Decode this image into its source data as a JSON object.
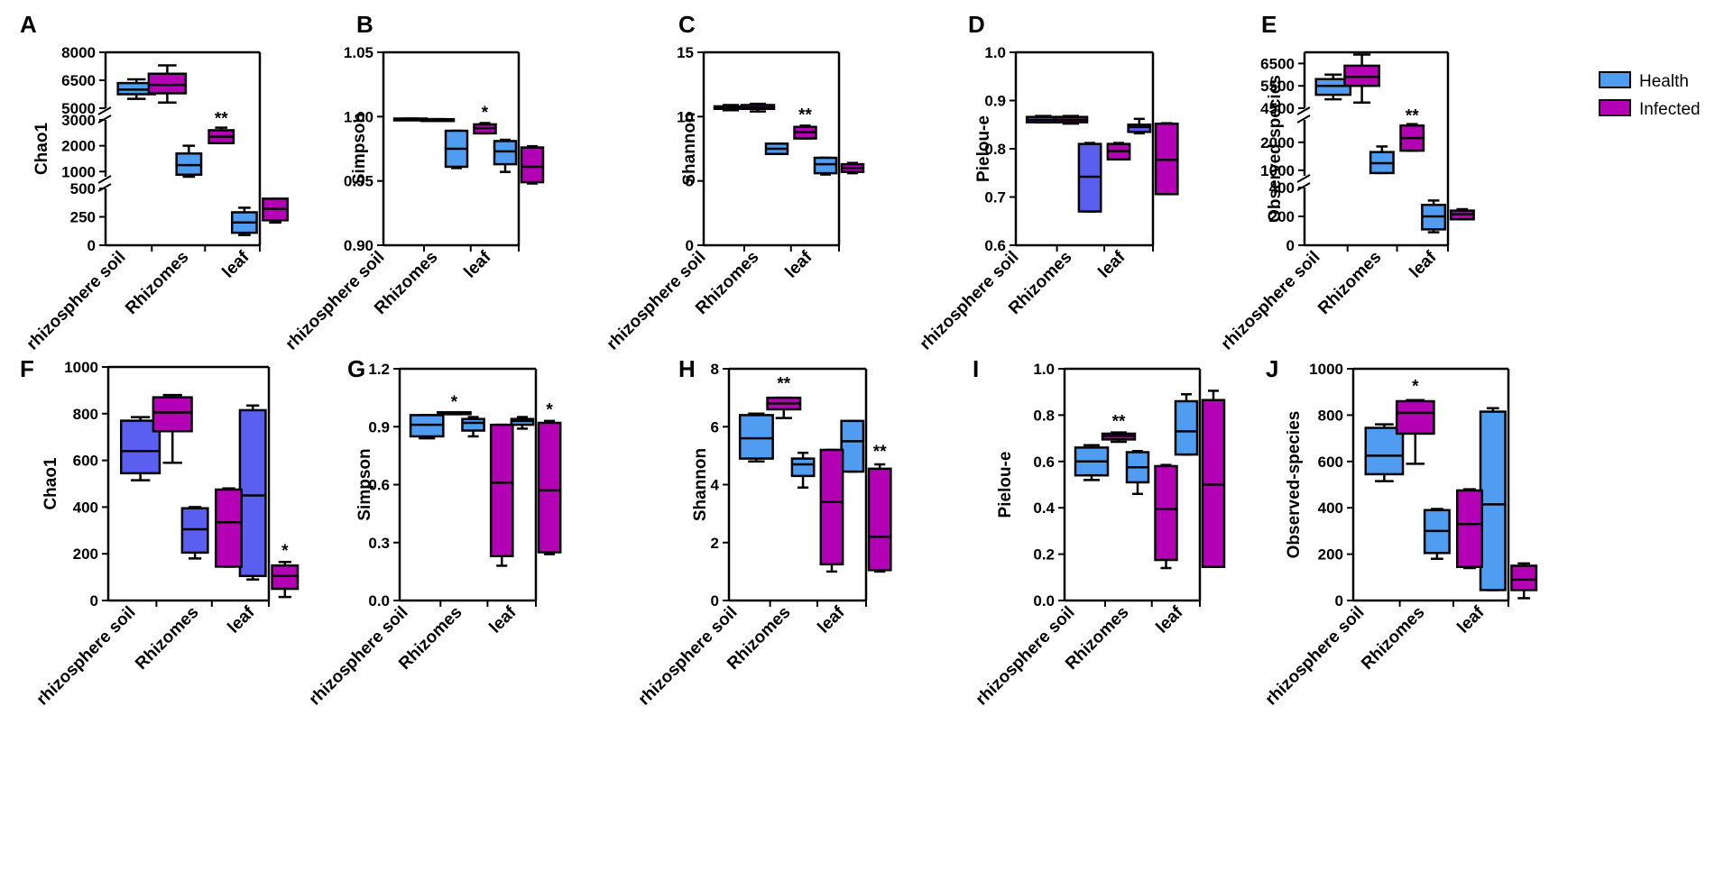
{
  "legend": {
    "items": [
      {
        "name": "Health",
        "color": "#4f9cf0"
      },
      {
        "name": "Infected",
        "color": "#b400b4"
      }
    ]
  },
  "colors": {
    "health": "#4f9cf0",
    "health_alt": "#5a5ff0",
    "infected": "#b400b4",
    "axis": "#000000"
  },
  "chart_data": [
    {
      "panel": "A",
      "type": "box",
      "ylabel": "Chao1",
      "categories": [
        "rhizosphere soil",
        "Rhizomes",
        "leaf"
      ],
      "segments": [
        {
          "range": [
            0,
            500
          ],
          "ticks": [
            "0",
            "250",
            "500"
          ]
        },
        {
          "range": [
            800,
            3000
          ],
          "ticks": [
            "1000",
            "2000",
            "3000"
          ]
        },
        {
          "range": [
            5000,
            8000
          ],
          "ticks": [
            "5000",
            "6500",
            "8000"
          ]
        }
      ],
      "series": [
        {
          "name": "Health",
          "boxes": [
            {
              "min": 5500,
              "q1": 5750,
              "median": 6000,
              "q3": 6350,
              "max": 6550
            },
            {
              "min": 800,
              "q1": 880,
              "median": 1250,
              "q3": 1700,
              "max": 2000
            },
            {
              "min": 90,
              "q1": 110,
              "median": 200,
              "q3": 290,
              "max": 330
            }
          ]
        },
        {
          "name": "Infected",
          "boxes": [
            {
              "min": 5300,
              "q1": 5800,
              "median": 6250,
              "q3": 6850,
              "max": 7300
            },
            {
              "min": 2100,
              "q1": 2100,
              "median": 2350,
              "q3": 2600,
              "max": 2700
            },
            {
              "min": 200,
              "q1": 220,
              "median": 320,
              "q3": 410,
              "max": 410
            }
          ]
        }
      ],
      "significance": [
        {
          "category": "Rhizomes",
          "label": "**",
          "value": 2850
        }
      ]
    },
    {
      "panel": "B",
      "type": "box",
      "ylabel": "Simpson",
      "categories": [
        "rhizosphere soil",
        "Rhizomes",
        "leaf"
      ],
      "segments": [
        {
          "range": [
            0.9,
            1.05
          ],
          "ticks": [
            "0.90",
            "0.95",
            "1.00",
            "1.05"
          ]
        }
      ],
      "series": [
        {
          "name": "Health",
          "boxes": [
            {
              "min": 0.9975,
              "q1": 0.9975,
              "median": 0.998,
              "q3": 0.9985,
              "max": 0.9985
            },
            {
              "min": 0.96,
              "q1": 0.961,
              "median": 0.975,
              "q3": 0.989,
              "max": 0.989
            },
            {
              "min": 0.957,
              "q1": 0.963,
              "median": 0.973,
              "q3": 0.981,
              "max": 0.982
            }
          ]
        },
        {
          "name": "Infected",
          "boxes": [
            {
              "min": 0.997,
              "q1": 0.997,
              "median": 0.9975,
              "q3": 0.998,
              "max": 0.998
            },
            {
              "min": 0.987,
              "q1": 0.987,
              "median": 0.991,
              "q3": 0.994,
              "max": 0.995
            },
            {
              "min": 0.948,
              "q1": 0.949,
              "median": 0.961,
              "q3": 0.976,
              "max": 0.977
            }
          ]
        }
      ],
      "significance": [
        {
          "category": "Rhizomes",
          "label": "*",
          "value": 0.999
        }
      ]
    },
    {
      "panel": "C",
      "type": "box",
      "ylabel": "Shannon",
      "categories": [
        "rhizosphere soil",
        "Rhizomes",
        "leaf"
      ],
      "segments": [
        {
          "range": [
            0,
            15
          ],
          "ticks": [
            "0",
            "5",
            "10",
            "15"
          ]
        }
      ],
      "series": [
        {
          "name": "Health",
          "boxes": [
            {
              "min": 10.5,
              "q1": 10.6,
              "median": 10.7,
              "q3": 10.8,
              "max": 10.9
            },
            {
              "min": 7.1,
              "q1": 7.1,
              "median": 7.5,
              "q3": 7.9,
              "max": 7.9
            },
            {
              "min": 5.5,
              "q1": 5.6,
              "median": 6.3,
              "q3": 6.8,
              "max": 6.8
            }
          ]
        },
        {
          "name": "Infected",
          "boxes": [
            {
              "min": 10.4,
              "q1": 10.6,
              "median": 10.7,
              "q3": 10.9,
              "max": 11.0
            },
            {
              "min": 8.3,
              "q1": 8.3,
              "median": 8.8,
              "q3": 9.2,
              "max": 9.3
            },
            {
              "min": 5.6,
              "q1": 5.7,
              "median": 6.0,
              "q3": 6.3,
              "max": 6.4
            }
          ]
        }
      ],
      "significance": [
        {
          "category": "Rhizomes",
          "label": "**",
          "value": 9.7
        }
      ]
    },
    {
      "panel": "D",
      "type": "box",
      "ylabel": "Pielou-e",
      "categories": [
        "rhizosphere soil",
        "Rhizomes",
        "leaf"
      ],
      "segments": [
        {
          "range": [
            0.6,
            1.0
          ],
          "ticks": [
            "0.6",
            "0.7",
            "0.8",
            "0.9",
            "1.0"
          ]
        }
      ],
      "series": [
        {
          "name": "Health",
          "boxes": [
            {
              "min": 0.855,
              "q1": 0.855,
              "median": 0.86,
              "q3": 0.866,
              "max": 0.868
            },
            {
              "min": 0.67,
              "q1": 0.67,
              "median": 0.742,
              "q3": 0.81,
              "max": 0.812
            },
            {
              "min": 0.832,
              "q1": 0.835,
              "median": 0.845,
              "q3": 0.85,
              "max": 0.862
            }
          ]
        },
        {
          "name": "Infected",
          "boxes": [
            {
              "min": 0.852,
              "q1": 0.855,
              "median": 0.86,
              "q3": 0.866,
              "max": 0.868
            },
            {
              "min": 0.778,
              "q1": 0.778,
              "median": 0.795,
              "q3": 0.81,
              "max": 0.812
            },
            {
              "min": 0.706,
              "q1": 0.706,
              "median": 0.777,
              "q3": 0.852,
              "max": 0.853
            }
          ]
        }
      ],
      "significance": []
    },
    {
      "panel": "E",
      "type": "box",
      "ylabel": "Observed-species",
      "categories": [
        "rhizosphere soil",
        "Rhizomes",
        "leaf"
      ],
      "segments": [
        {
          "range": [
            0,
            400
          ],
          "ticks": [
            "0",
            "200",
            "400"
          ]
        },
        {
          "range": [
            800,
            2800
          ],
          "ticks": [
            "1000",
            "2000"
          ]
        },
        {
          "range": [
            4500,
            7000
          ],
          "ticks": [
            "4500",
            "5500",
            "6500"
          ]
        }
      ],
      "series": [
        {
          "name": "Health",
          "boxes": [
            {
              "min": 4900,
              "q1": 5100,
              "median": 5500,
              "q3": 5800,
              "max": 6000
            },
            {
              "min": 900,
              "q1": 900,
              "median": 1250,
              "q3": 1650,
              "max": 1850
            },
            {
              "min": 90,
              "q1": 110,
              "median": 200,
              "q3": 280,
              "max": 310
            }
          ]
        },
        {
          "name": "Infected",
          "boxes": [
            {
              "min": 4750,
              "q1": 5500,
              "median": 5900,
              "q3": 6400,
              "max": 6900
            },
            {
              "min": 1700,
              "q1": 1700,
              "median": 2150,
              "q3": 2600,
              "max": 2650
            },
            {
              "min": 180,
              "q1": 180,
              "median": 215,
              "q3": 240,
              "max": 250
            }
          ]
        }
      ],
      "significance": [
        {
          "category": "Rhizomes",
          "label": "**",
          "value": 2750
        }
      ]
    },
    {
      "panel": "F",
      "type": "box",
      "ylabel": "Chao1",
      "categories": [
        "rhizosphere soil",
        "Rhizomes",
        "leaf"
      ],
      "segments": [
        {
          "range": [
            0,
            1000
          ],
          "ticks": [
            "0",
            "200",
            "400",
            "600",
            "800",
            "1000"
          ]
        }
      ],
      "series": [
        {
          "name": "Health",
          "boxes": [
            {
              "min": 515,
              "q1": 545,
              "median": 640,
              "q3": 770,
              "max": 785
            },
            {
              "min": 180,
              "q1": 205,
              "median": 305,
              "q3": 395,
              "max": 400
            },
            {
              "min": 90,
              "q1": 105,
              "median": 450,
              "q3": 815,
              "max": 835
            }
          ]
        },
        {
          "name": "Infected",
          "boxes": [
            {
              "min": 590,
              "q1": 725,
              "median": 805,
              "q3": 870,
              "max": 880
            },
            {
              "min": 145,
              "q1": 145,
              "median": 335,
              "q3": 475,
              "max": 480
            },
            {
              "min": 15,
              "q1": 50,
              "median": 105,
              "q3": 150,
              "max": 165
            }
          ]
        }
      ],
      "significance": [
        {
          "category": "leaf",
          "label": "*",
          "value": 190
        }
      ]
    },
    {
      "panel": "G",
      "type": "box",
      "ylabel": "Simpson",
      "categories": [
        "rhizosphere soil",
        "Rhizomes",
        "leaf"
      ],
      "segments": [
        {
          "range": [
            0,
            1.2
          ],
          "ticks": [
            "0.0",
            "0.3",
            "0.6",
            "0.9",
            "1.2"
          ]
        }
      ],
      "series": [
        {
          "name": "Health",
          "boxes": [
            {
              "min": 0.84,
              "q1": 0.85,
              "median": 0.91,
              "q3": 0.96,
              "max": 0.96
            },
            {
              "min": 0.85,
              "q1": 0.88,
              "median": 0.92,
              "q3": 0.94,
              "max": 0.95
            },
            {
              "min": 0.89,
              "q1": 0.91,
              "median": 0.93,
              "q3": 0.94,
              "max": 0.95
            }
          ]
        },
        {
          "name": "Infected",
          "boxes": [
            {
              "min": 0.965,
              "q1": 0.965,
              "median": 0.97,
              "q3": 0.975,
              "max": 0.975
            },
            {
              "min": 0.18,
              "q1": 0.23,
              "median": 0.61,
              "q3": 0.91,
              "max": 0.91
            },
            {
              "min": 0.24,
              "q1": 0.25,
              "median": 0.57,
              "q3": 0.92,
              "max": 0.93
            }
          ]
        }
      ],
      "significance": [
        {
          "category": "rhizosphere soil",
          "label": "*",
          "value": 1.0
        },
        {
          "category": "leaf",
          "label": "*",
          "value": 0.96
        }
      ]
    },
    {
      "panel": "H",
      "type": "box",
      "ylabel": "Shannon",
      "categories": [
        "rhizosphere soil",
        "Rhizomes",
        "leaf"
      ],
      "segments": [
        {
          "range": [
            0,
            8
          ],
          "ticks": [
            "0",
            "2",
            "4",
            "6",
            "8"
          ]
        }
      ],
      "series": [
        {
          "name": "Health",
          "boxes": [
            {
              "min": 4.8,
              "q1": 4.9,
              "median": 5.6,
              "q3": 6.4,
              "max": 6.45
            },
            {
              "min": 3.9,
              "q1": 4.3,
              "median": 4.7,
              "q3": 4.9,
              "max": 5.1
            },
            {
              "min": 4.45,
              "q1": 4.45,
              "median": 5.5,
              "q3": 6.2,
              "max": 6.2
            }
          ]
        },
        {
          "name": "Infected",
          "boxes": [
            {
              "min": 6.3,
              "q1": 6.6,
              "median": 6.8,
              "q3": 7.0,
              "max": 7.0
            },
            {
              "min": 1.0,
              "q1": 1.25,
              "median": 3.4,
              "q3": 5.2,
              "max": 5.2
            },
            {
              "min": 1.0,
              "q1": 1.05,
              "median": 2.2,
              "q3": 4.55,
              "max": 4.7
            }
          ]
        }
      ],
      "significance": [
        {
          "category": "rhizosphere soil",
          "label": "**",
          "value": 7.3
        },
        {
          "category": "leaf",
          "label": "**",
          "value": 4.95
        }
      ]
    },
    {
      "panel": "I",
      "type": "box",
      "ylabel": "Pielou-e",
      "categories": [
        "rhizosphere soil",
        "Rhizomes",
        "leaf"
      ],
      "segments": [
        {
          "range": [
            0,
            1.0
          ],
          "ticks": [
            "0.0",
            "0.2",
            "0.4",
            "0.6",
            "0.8",
            "1.0"
          ]
        }
      ],
      "series": [
        {
          "name": "Health",
          "boxes": [
            {
              "min": 0.52,
              "q1": 0.54,
              "median": 0.6,
              "q3": 0.66,
              "max": 0.67
            },
            {
              "min": 0.46,
              "q1": 0.51,
              "median": 0.575,
              "q3": 0.64,
              "max": 0.645
            },
            {
              "min": 0.63,
              "q1": 0.63,
              "median": 0.73,
              "q3": 0.86,
              "max": 0.89
            }
          ]
        },
        {
          "name": "Infected",
          "boxes": [
            {
              "min": 0.685,
              "q1": 0.695,
              "median": 0.71,
              "q3": 0.72,
              "max": 0.725
            },
            {
              "min": 0.14,
              "q1": 0.175,
              "median": 0.395,
              "q3": 0.58,
              "max": 0.585
            },
            {
              "min": 0.145,
              "q1": 0.145,
              "median": 0.5,
              "q3": 0.865,
              "max": 0.905
            }
          ]
        }
      ],
      "significance": [
        {
          "category": "rhizosphere soil",
          "label": "**",
          "value": 0.75
        }
      ]
    },
    {
      "panel": "J",
      "type": "box",
      "ylabel": "Observed-species",
      "categories": [
        "rhizosphere soil",
        "Rhizomes",
        "leaf"
      ],
      "segments": [
        {
          "range": [
            0,
            1000
          ],
          "ticks": [
            "0",
            "200",
            "400",
            "600",
            "800",
            "1000"
          ]
        }
      ],
      "series": [
        {
          "name": "Health",
          "boxes": [
            {
              "min": 515,
              "q1": 545,
              "median": 625,
              "q3": 745,
              "max": 760
            },
            {
              "min": 180,
              "q1": 205,
              "median": 300,
              "q3": 390,
              "max": 395
            },
            {
              "min": 45,
              "q1": 45,
              "median": 415,
              "q3": 815,
              "max": 830
            }
          ]
        },
        {
          "name": "Infected",
          "boxes": [
            {
              "min": 590,
              "q1": 720,
              "median": 810,
              "q3": 860,
              "max": 865
            },
            {
              "min": 140,
              "q1": 145,
              "median": 330,
              "q3": 475,
              "max": 480
            },
            {
              "min": 10,
              "q1": 45,
              "median": 90,
              "q3": 150,
              "max": 160
            }
          ]
        }
      ],
      "significance": [
        {
          "category": "rhizosphere soil",
          "label": "*",
          "value": 900
        }
      ]
    }
  ]
}
